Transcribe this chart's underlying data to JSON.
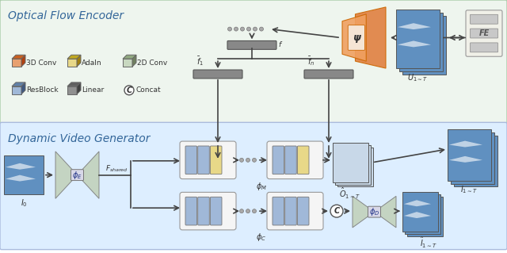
{
  "title_top": "Optical Flow Encoder",
  "title_bottom": "Dynamic Video Generator",
  "bg_top": "#eef4ee",
  "bg_bottom": "#ddeeff",
  "legend_items": [
    {
      "label": "3D Conv",
      "color": "#e8a070"
    },
    {
      "label": "AdaIn",
      "color": "#e8d888"
    },
    {
      "label": "2D Conv",
      "color": "#c8d8c0"
    },
    {
      "label": "ResBlock",
      "color": "#a0b8d8"
    },
    {
      "label": "Linear",
      "color": "#909090"
    },
    {
      "label": "Concat",
      "color": "#ffffff"
    }
  ],
  "arrow_color": "#333333",
  "text_color_title": "#336699",
  "node_outline": "#888888"
}
